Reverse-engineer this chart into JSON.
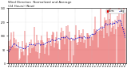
{
  "title": "Wind Direction  Normalized and Average",
  "subtitle": "(24 Hours) (New)",
  "background_color": "#ffffff",
  "plot_bg": "#ffffff",
  "bar_color": "#dd0000",
  "line_color": "#0000cc",
  "ylim": [
    0,
    360
  ],
  "ytick_labels": [
    "0",
    "90",
    "180",
    "270",
    "360"
  ],
  "ytick_vals": [
    0,
    90,
    180,
    270,
    360
  ],
  "legend_bar_label": "Norm",
  "legend_line_label": "Avg",
  "n_points": 144,
  "random_seed": 42,
  "figsize": [
    1.6,
    0.87
  ],
  "dpi": 100,
  "title_fontsize": 2.8,
  "tick_fontsize": 2.2,
  "legend_fontsize": 2.0
}
